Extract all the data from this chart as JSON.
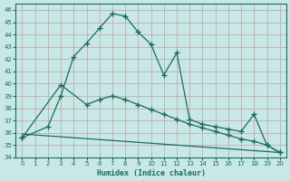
{
  "xlabel": "Humidex (Indice chaleur)",
  "background_color": "#c8e8e8",
  "grid_color": "#aacccc",
  "line_color": "#1a6b5a",
  "xlim": [
    -0.5,
    20.5
  ],
  "ylim": [
    34,
    46.5
  ],
  "xticks": [
    0,
    1,
    2,
    3,
    4,
    5,
    6,
    7,
    8,
    9,
    10,
    11,
    12,
    13,
    14,
    15,
    16,
    17,
    18,
    19,
    20
  ],
  "yticks": [
    34,
    35,
    36,
    37,
    38,
    39,
    40,
    41,
    42,
    43,
    44,
    45,
    46
  ],
  "series1_x": [
    0,
    2,
    3,
    4,
    5,
    6,
    7,
    8,
    9,
    10,
    11,
    12,
    13,
    14,
    15,
    16,
    17,
    18,
    19,
    20
  ],
  "series1_y": [
    35.6,
    36.5,
    39.0,
    42.2,
    43.3,
    44.5,
    45.7,
    45.5,
    44.2,
    43.2,
    40.7,
    42.5,
    37.1,
    36.7,
    36.5,
    36.3,
    36.1,
    37.5,
    35.0,
    34.4
  ],
  "series2_x": [
    0,
    3,
    5,
    6,
    7,
    8,
    9,
    10,
    11,
    12,
    13,
    14,
    15,
    16,
    17,
    18,
    19,
    20
  ],
  "series2_y": [
    35.6,
    39.9,
    38.3,
    38.7,
    39.0,
    38.7,
    38.3,
    37.9,
    37.5,
    37.1,
    36.7,
    36.4,
    36.1,
    35.8,
    35.5,
    35.3,
    35.0,
    34.4
  ],
  "series3_x": [
    0,
    20
  ],
  "series3_y": [
    35.9,
    34.4
  ]
}
